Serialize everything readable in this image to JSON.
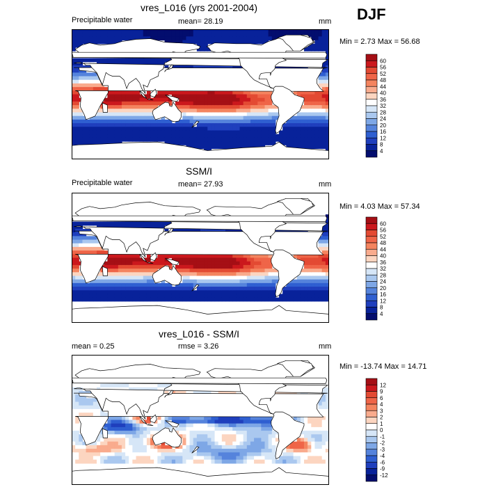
{
  "season": "DJF",
  "chart_data": [
    {
      "type": "heatmap",
      "title": "vres_L016 (yrs 2001-2004)",
      "left_label": "Precipitable water",
      "center_label": "mean=  28.19",
      "units": "mm",
      "minmax": "Min =   2.73 Max =  56.68",
      "mean": 28.19,
      "min": 2.73,
      "max": 56.68,
      "lon_range": [
        0,
        360
      ],
      "lat_range": [
        -90,
        90
      ],
      "colorbar_levels": [
        "60",
        "56",
        "52",
        "48",
        "44",
        "40",
        "36",
        "32",
        "28",
        "24",
        "20",
        "16",
        "12",
        "8",
        "4"
      ],
      "colorbar_colors": [
        "#a50f15",
        "#cb181d",
        "#e34a33",
        "#ef6548",
        "#f4845f",
        "#f9ab8d",
        "#fcd5c0",
        "#ffffff",
        "#d6e6f7",
        "#aac8ef",
        "#7ea7e6",
        "#5583dc",
        "#2f5fd1",
        "#1f3fbd",
        "#08229a",
        "#030d6e"
      ]
    },
    {
      "type": "heatmap",
      "title": "SSM/I",
      "left_label": "Precipitable water",
      "center_label": "mean=  27.93",
      "units": "mm",
      "minmax": "Min =   4.03 Max =  57.34",
      "mean": 27.93,
      "min": 4.03,
      "max": 57.34,
      "lon_range": [
        0,
        360
      ],
      "lat_range": [
        -90,
        90
      ],
      "colorbar_levels": [
        "60",
        "56",
        "52",
        "48",
        "44",
        "40",
        "36",
        "32",
        "28",
        "24",
        "20",
        "16",
        "12",
        "8",
        "4"
      ],
      "colorbar_colors": [
        "#a50f15",
        "#cb181d",
        "#e34a33",
        "#ef6548",
        "#f4845f",
        "#f9ab8d",
        "#fcd5c0",
        "#ffffff",
        "#d6e6f7",
        "#aac8ef",
        "#7ea7e6",
        "#5583dc",
        "#2f5fd1",
        "#1f3fbd",
        "#08229a",
        "#030d6e"
      ]
    },
    {
      "type": "heatmap",
      "title": "vres_L016 - SSM/I",
      "left_label": "mean =   0.25",
      "center_label": "rmse =   3.26",
      "units": "mm",
      "minmax": "Min = -13.74 Max =  14.71",
      "mean": 0.25,
      "rmse": 3.26,
      "min": -13.74,
      "max": 14.71,
      "lon_range": [
        0,
        360
      ],
      "lat_range": [
        -90,
        90
      ],
      "colorbar_levels": [
        "12",
        "9",
        "6",
        "4",
        "3",
        "2",
        "1",
        "0",
        "-1",
        "-2",
        "-3",
        "-4",
        "-6",
        "-9",
        "-12"
      ],
      "colorbar_colors": [
        "#a50f15",
        "#cb181d",
        "#e34a33",
        "#ef6548",
        "#f4845f",
        "#f9ab8d",
        "#fcd5c0",
        "#ffffff",
        "#d6e6f7",
        "#aac8ef",
        "#7ea7e6",
        "#5583dc",
        "#2f5fd1",
        "#1f3fbd",
        "#08229a",
        "#030d6e"
      ]
    }
  ]
}
